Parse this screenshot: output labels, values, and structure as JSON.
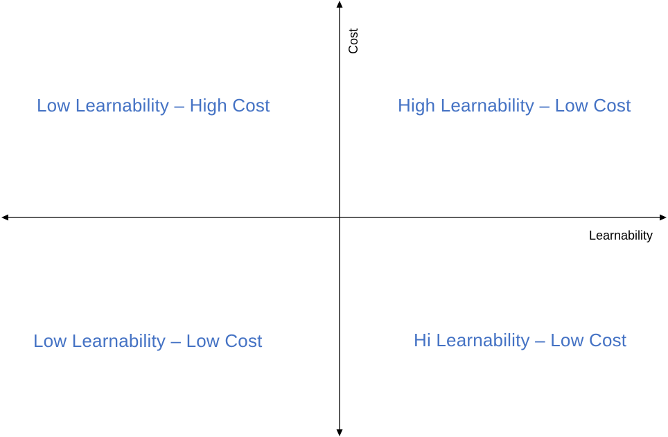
{
  "diagram": {
    "type": "quadrant",
    "x_axis": {
      "label": "Learnability"
    },
    "y_axis": {
      "label": "Cost"
    },
    "quadrants": {
      "top_left": "Low Learnability – High Cost",
      "top_right": "High Learnability – Low Cost",
      "bottom_left": "Low Learnability – Low Cost",
      "bottom_right": "Hi Learnability – Low Cost"
    },
    "colors": {
      "quadrant_text": "#4472C4",
      "axis": "#000000"
    }
  }
}
